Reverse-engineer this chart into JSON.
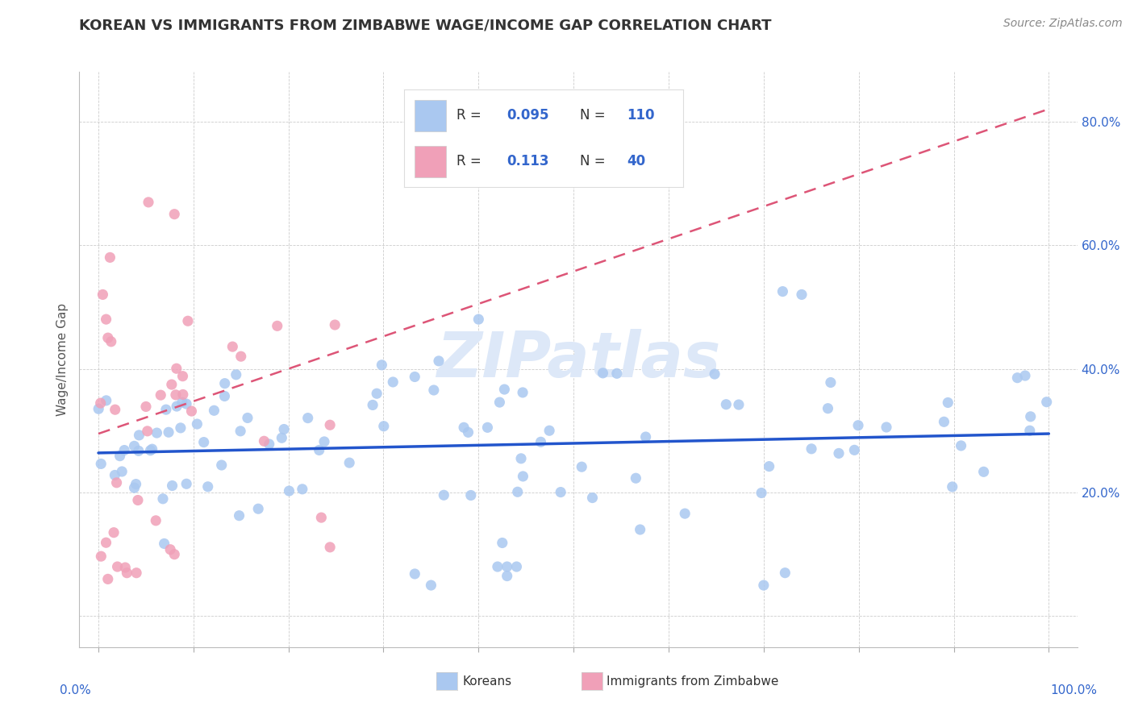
{
  "title": "KOREAN VS IMMIGRANTS FROM ZIMBABWE WAGE/INCOME GAP CORRELATION CHART",
  "source": "Source: ZipAtlas.com",
  "ylabel": "Wage/Income Gap",
  "korean_R": 0.095,
  "korean_N": 110,
  "zimbabwe_R": 0.113,
  "zimbabwe_N": 40,
  "bg_color": "#ffffff",
  "plot_bg_color": "#ffffff",
  "grid_color": "#cccccc",
  "korean_color": "#aac8f0",
  "korean_line_color": "#2255cc",
  "zimbabwe_color": "#f0a0b8",
  "zimbabwe_line_color": "#dd5577",
  "watermark_color": "#dde8f8",
  "title_color": "#333333",
  "legend_color": "#3366cc",
  "axis_label_color": "#3366cc"
}
